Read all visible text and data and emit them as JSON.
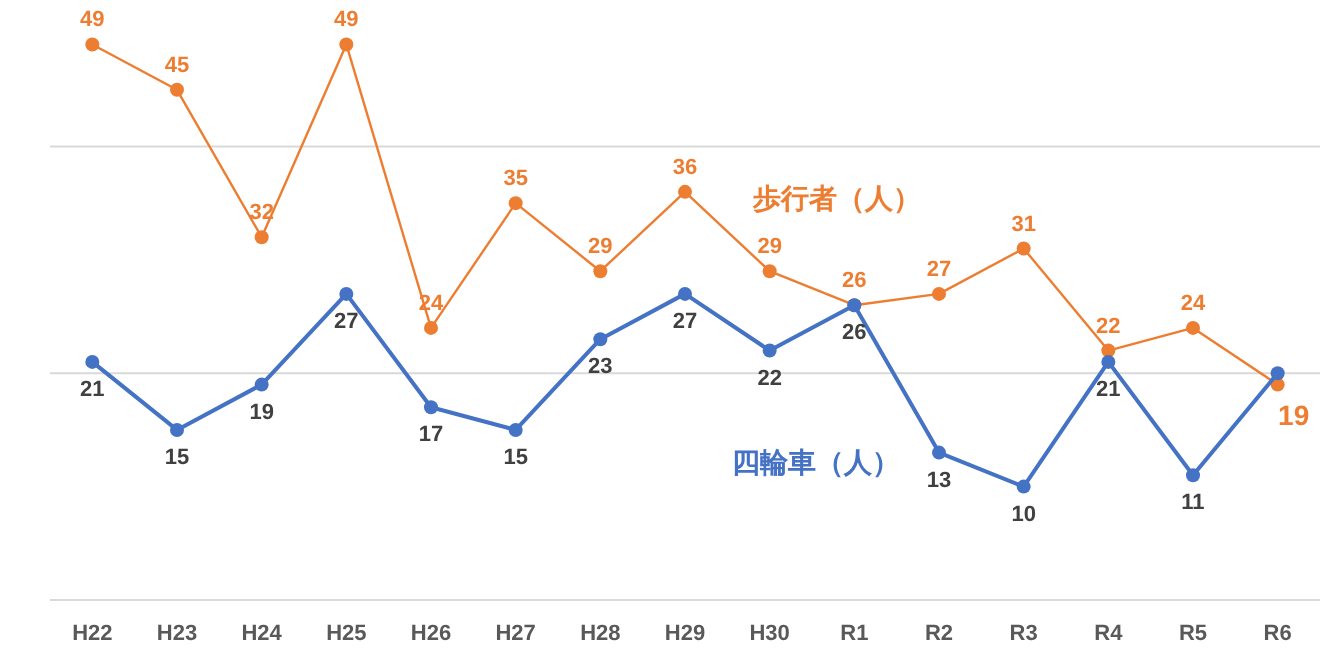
{
  "chart_data": {
    "type": "line",
    "categories": [
      "H22",
      "H23",
      "H24",
      "H25",
      "H26",
      "H27",
      "H28",
      "H29",
      "H30",
      "R1",
      "R2",
      "R3",
      "R4",
      "R5",
      "R6"
    ],
    "series": [
      {
        "name": "歩行者（人）",
        "color": "#ed7d31",
        "values": [
          49,
          45,
          32,
          49,
          24,
          35,
          29,
          36,
          29,
          26,
          27,
          31,
          22,
          24,
          19
        ]
      },
      {
        "name": "四輪車（人）",
        "color": "#4472c4",
        "values": [
          21,
          15,
          19,
          27,
          17,
          15,
          23,
          27,
          22,
          26,
          13,
          10,
          21,
          11,
          20
        ],
        "value_labels": [
          "21",
          "15",
          "19",
          "27",
          "17",
          "15",
          "23",
          "27",
          "22",
          "26",
          "13",
          "10",
          "21",
          "11",
          null
        ]
      }
    ],
    "ref_lines": [
      {
        "axis": "y",
        "value": 20,
        "color": "#d9d9d9",
        "line_style": "solid"
      },
      {
        "axis": "y",
        "value": 40,
        "color": "#d9d9d9",
        "line_style": "solid"
      }
    ],
    "marker": "circle",
    "line_style": "solid",
    "data_labels": true,
    "legend": false,
    "tick_labels": "x"
  }
}
